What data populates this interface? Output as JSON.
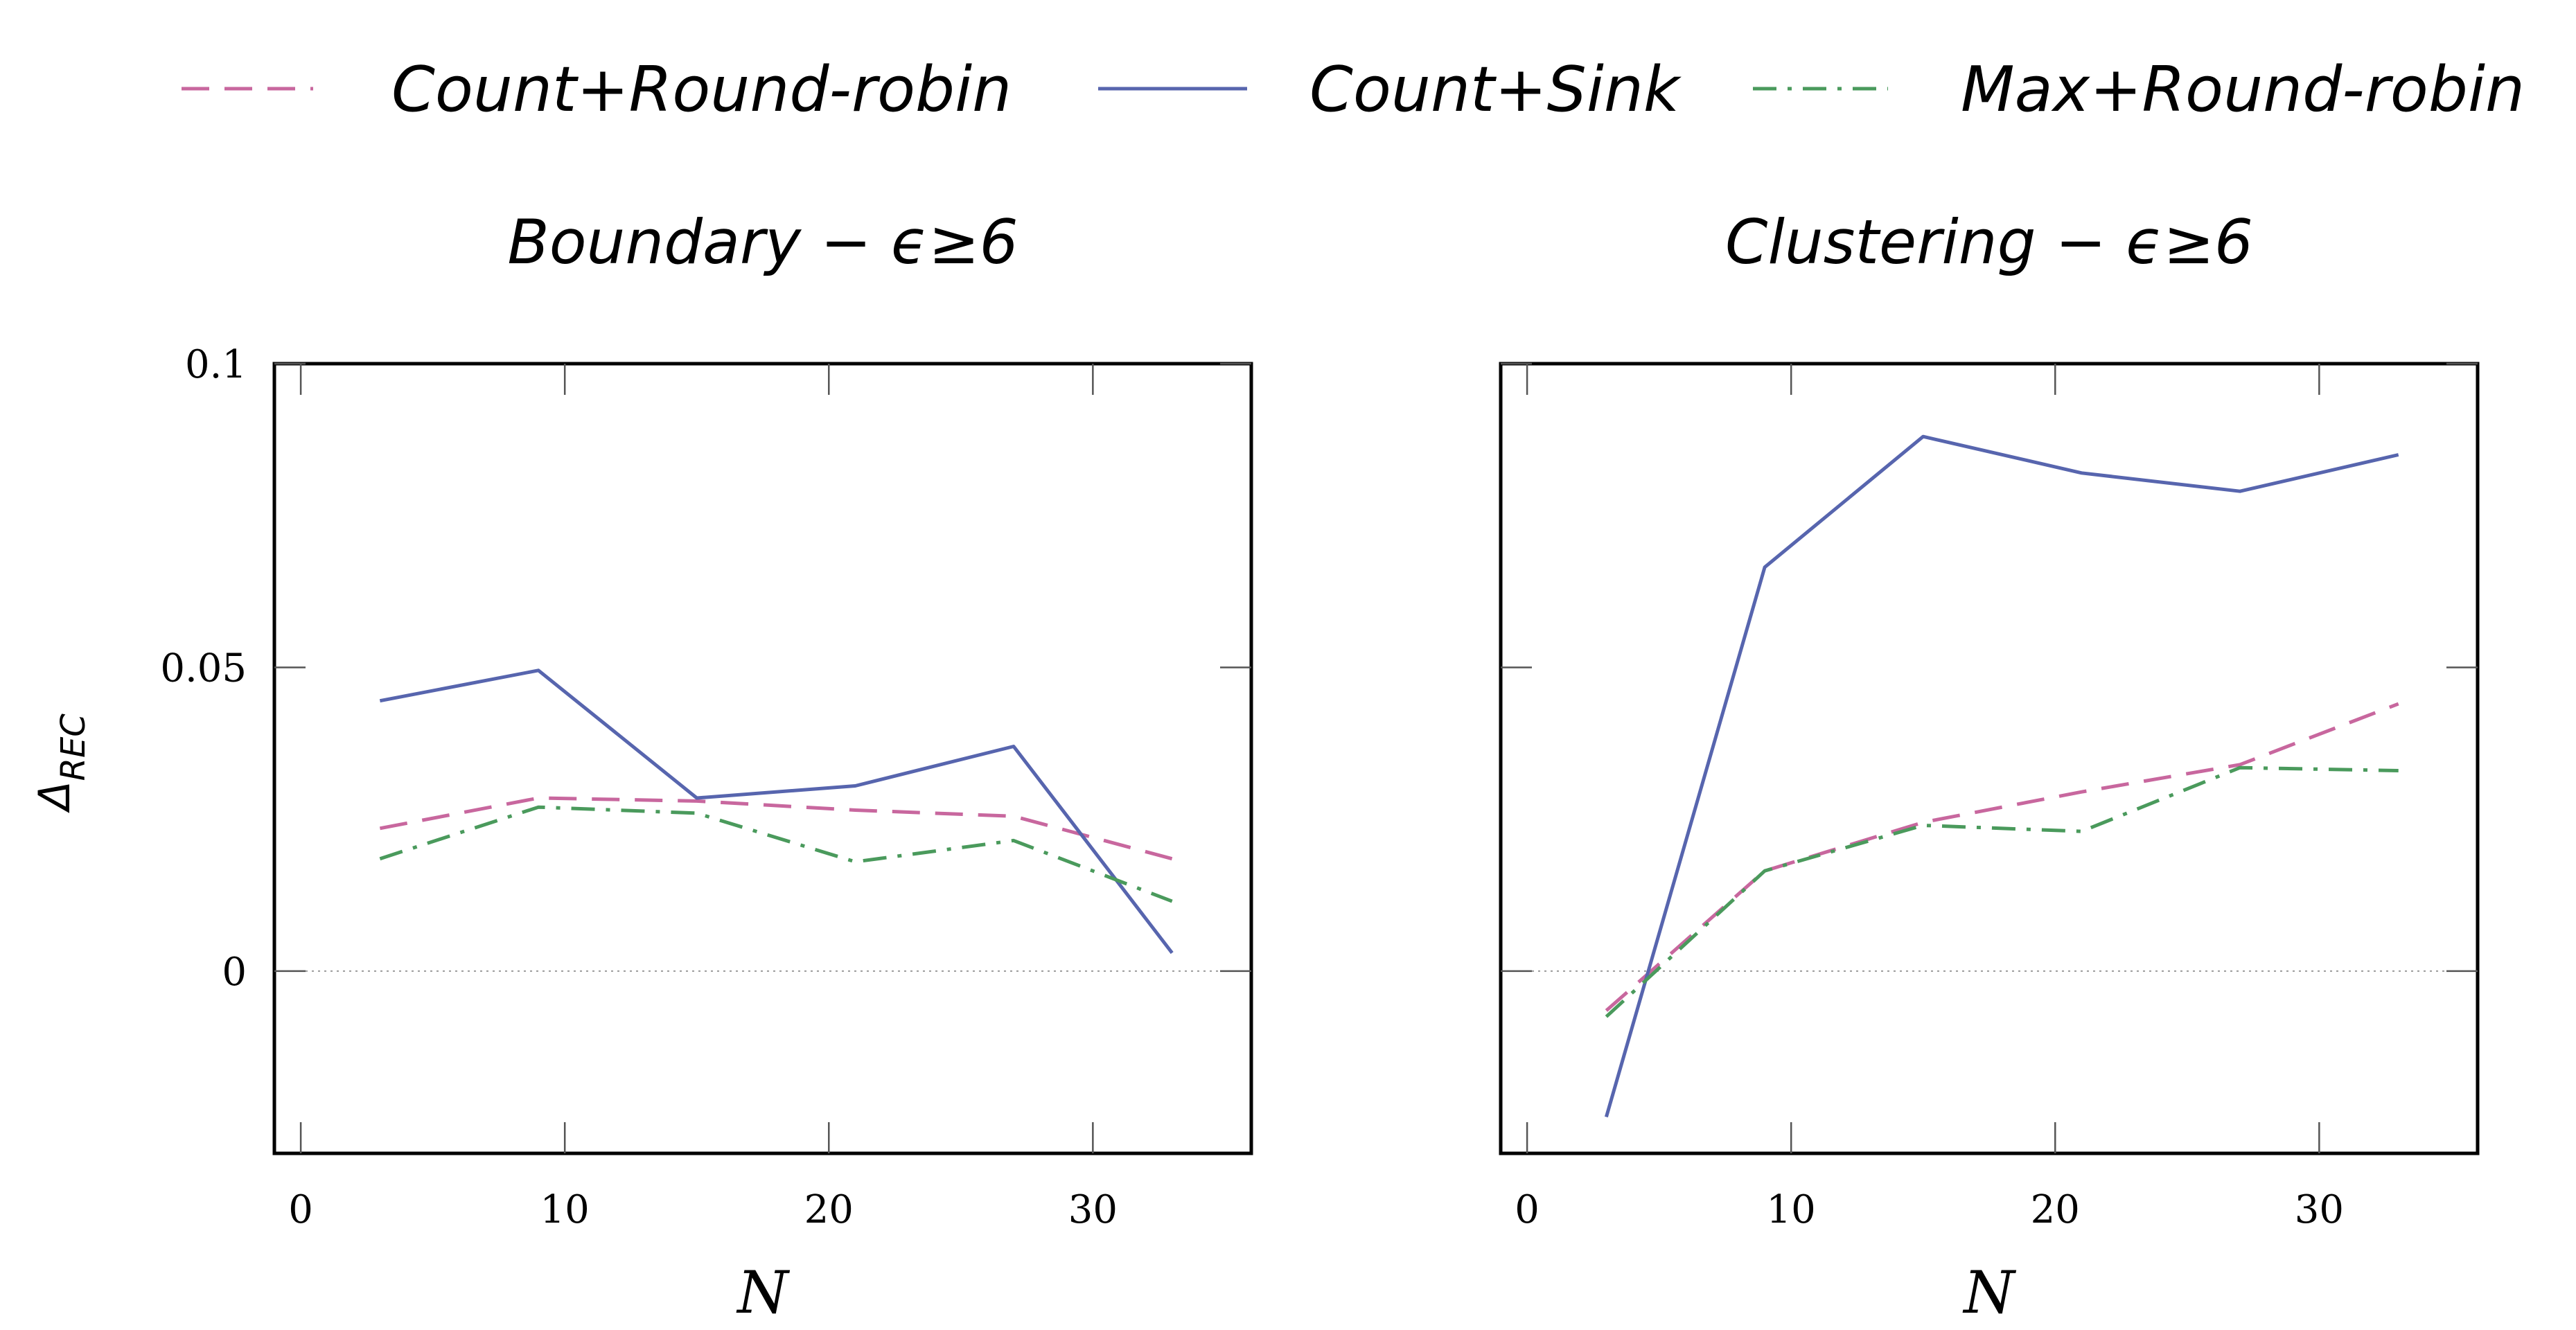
{
  "legend": [
    {
      "label": "Count+Round-robin",
      "series": "count_rr"
    },
    {
      "label": "Count+Sink",
      "series": "count_sink"
    },
    {
      "label": "Max+Round-robin",
      "series": "max_rr"
    }
  ],
  "colors": {
    "count_rr": "#c8679e",
    "count_sink": "#5765ae",
    "max_rr": "#4a9a5c",
    "zero_line": "#9a9a9a"
  },
  "styles": {
    "count_rr": "dashed",
    "count_sink": "solid",
    "max_rr": "dash-dot"
  },
  "ylabel": "Δ",
  "ylabel_sub": "REC",
  "chart_data": [
    {
      "type": "line",
      "title": "Boundary − ϵ≥6",
      "xlabel": "N",
      "ylabel": "ΔREC",
      "xlim": [
        -1,
        36
      ],
      "ylim": [
        -0.03,
        0.1
      ],
      "xticks": [
        0,
        10,
        20,
        30
      ],
      "xtick_labels": [
        "0",
        "10",
        "20",
        "30"
      ],
      "yticks": [
        0,
        0.05,
        0.1
      ],
      "ytick_labels": [
        "0",
        "0.05",
        "0.1"
      ],
      "zero_line": true,
      "series": [
        {
          "key": "count_rr",
          "name": "Count+Round-robin",
          "x": [
            3,
            9,
            15,
            21,
            27,
            33
          ],
          "y": [
            0.0235,
            0.0285,
            0.028,
            0.0265,
            0.0255,
            0.0185
          ]
        },
        {
          "key": "count_sink",
          "name": "Count+Sink",
          "x": [
            3,
            9,
            15,
            21,
            27,
            33
          ],
          "y": [
            0.0445,
            0.0495,
            0.0285,
            0.0305,
            0.037,
            0.003
          ]
        },
        {
          "key": "max_rr",
          "name": "Max+Round-robin",
          "x": [
            3,
            9,
            15,
            21,
            27,
            33
          ],
          "y": [
            0.0185,
            0.027,
            0.026,
            0.018,
            0.0215,
            0.0115
          ]
        }
      ]
    },
    {
      "type": "line",
      "title": "Clustering − ϵ≥6",
      "xlabel": "N",
      "ylabel": "",
      "xlim": [
        -1,
        36
      ],
      "ylim": [
        -0.03,
        0.1
      ],
      "xticks": [
        0,
        10,
        20,
        30
      ],
      "xtick_labels": [
        "0",
        "10",
        "20",
        "30"
      ],
      "yticks": [
        0,
        0.05,
        0.1
      ],
      "ytick_labels": [],
      "zero_line": true,
      "series": [
        {
          "key": "count_rr",
          "name": "Count+Round-robin",
          "x": [
            3,
            9,
            15,
            21,
            27,
            33
          ],
          "y": [
            -0.0065,
            0.0165,
            0.0245,
            0.0295,
            0.034,
            0.044
          ]
        },
        {
          "key": "count_sink",
          "name": "Count+Sink",
          "x": [
            3,
            9,
            15,
            21,
            27,
            33
          ],
          "y": [
            -0.024,
            0.0665,
            0.088,
            0.082,
            0.079,
            0.085
          ]
        },
        {
          "key": "max_rr",
          "name": "Max+Round-robin",
          "x": [
            3,
            9,
            15,
            21,
            27,
            33
          ],
          "y": [
            -0.0075,
            0.0165,
            0.024,
            0.023,
            0.0335,
            0.033
          ]
        }
      ]
    }
  ]
}
